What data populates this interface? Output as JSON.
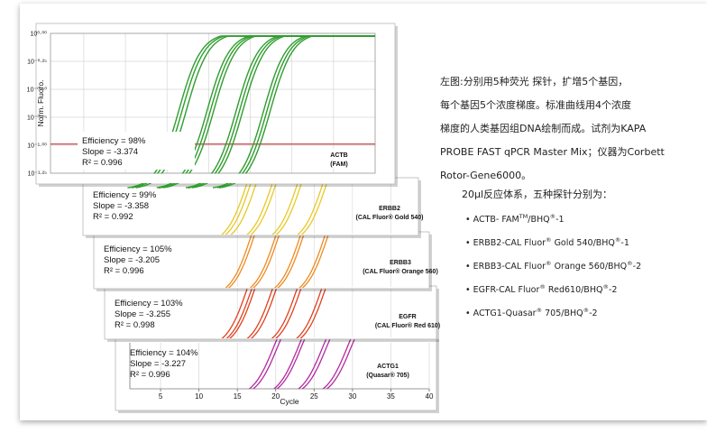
{
  "chart_data": [
    {
      "type": "line",
      "name": "ACTB",
      "label_line1": "ACTB",
      "label_line2": "(FAM)",
      "color": "#2e9e2e",
      "stats": {
        "efficiency": "Efficiency = 98%",
        "slope": "Slope = -3.374",
        "r2": "R² = 0.996"
      },
      "ylabel": "Norm. Fluoro.",
      "y_ticks": [
        "10⁰·⁰⁰",
        "10⁻⁰·²⁵",
        "10⁻⁰·⁵⁰",
        "10⁻⁰·⁷⁵",
        "10⁻¹·⁰⁰",
        "10⁻¹·²⁵"
      ],
      "y_tick_values": [
        0.0,
        -0.25,
        -0.5,
        -0.75,
        -1.0,
        -1.25
      ],
      "ylim": [
        -1.25,
        0.0
      ],
      "threshold": -0.99,
      "ct_values": [
        16.4,
        16.8,
        17.3,
        19.8,
        20.2,
        20.6,
        23.3,
        23.7,
        24.1,
        26.6,
        27.0,
        27.4
      ]
    },
    {
      "type": "line",
      "name": "ERBB2",
      "label_line1": "ERBB2",
      "label_line2": "(CAL Fluor® Gold 540)",
      "color": "#e8c825",
      "stats": {
        "efficiency": "Efficiency = 99%",
        "slope": "Slope = -3.358",
        "r2": "R² = 0.992"
      },
      "ct_values": [
        16.3,
        16.8,
        17.5,
        19.6,
        20.1,
        22.9,
        23.4,
        26.2,
        26.7
      ]
    },
    {
      "type": "line",
      "name": "ERBB3",
      "label_line1": "ERBB3",
      "label_line2": "(CAL Fluor® Orange 560)",
      "color": "#ef8a22",
      "stats": {
        "efficiency": "Efficiency = 105%",
        "slope": "Slope = -3.205",
        "r2": "R² = 0.996"
      },
      "ct_values": [
        16.8,
        17.2,
        20.0,
        20.4,
        23.2,
        23.6,
        26.4,
        26.8
      ]
    },
    {
      "type": "line",
      "name": "EGFR",
      "label_line1": "EGFR",
      "label_line2": "(CAL Fluor® Red 610)",
      "color": "#e0401e",
      "stats": {
        "efficiency": "Efficiency = 103%",
        "slope": "Slope = -3.255",
        "r2": "R² = 0.998"
      },
      "ct_values": [
        16.3,
        16.9,
        17.3,
        19.6,
        20.1,
        22.8,
        23.3,
        26.0,
        26.5
      ]
    },
    {
      "type": "line",
      "name": "ACTG1",
      "label_line1": "ACTG1",
      "label_line2": "(Quasar® 705)",
      "color": "#b42aa0",
      "stats": {
        "efficiency": "Efficiency = 104%",
        "slope": "Slope = -3.227",
        "r2": "R² = 0.996"
      },
      "xlabel": "Cycle",
      "x_ticks": [
        5,
        10,
        15,
        20,
        25,
        30,
        35,
        40
      ],
      "xlim": [
        1,
        40
      ],
      "ct_values": [
        19.7,
        20.2,
        22.9,
        23.3,
        26.1,
        26.6,
        29.3,
        29.8
      ]
    }
  ],
  "description": {
    "line1": "左图:分别用5种荧光 探针，扩增5个基因，",
    "line2": "每个基因5个浓度梯度。标准曲线用4个浓度",
    "line3": "梯度的人类基因组DNA绘制而成。试剂为KAPA",
    "line4": "PROBE FAST qPCR Master Mix；仪器为Corbett",
    "line5": "Rotor-Gene6000。",
    "mix_line": "20μl反应体系，五种探针分别为：",
    "probes": [
      {
        "bullet": "•",
        "a": "ACTB- FAM",
        "sup1": "TM",
        "b": "/BHQ",
        "sup2": "®",
        "c": "-1"
      },
      {
        "bullet": "•",
        "a": "ERBB2-CAL Fluor",
        "sup1": "®",
        "b": " Gold 540/BHQ",
        "sup2": "®",
        "c": "-1"
      },
      {
        "bullet": "•",
        "a": "ERBB3-CAL Fluor",
        "sup1": "®",
        "b": " Orange 560/BHQ",
        "sup2": "®",
        "c": "-2"
      },
      {
        "bullet": "•",
        "a": "EGFR-CAL Fluor",
        "sup1": "®",
        "b": " Red610/BHQ",
        "sup2": "®",
        "c": "-2"
      },
      {
        "bullet": "•",
        "a": "ACTG1-Quasar",
        "sup1": "®",
        "b": " 705/BHQ",
        "sup2": "®",
        "c": "-2"
      }
    ]
  }
}
